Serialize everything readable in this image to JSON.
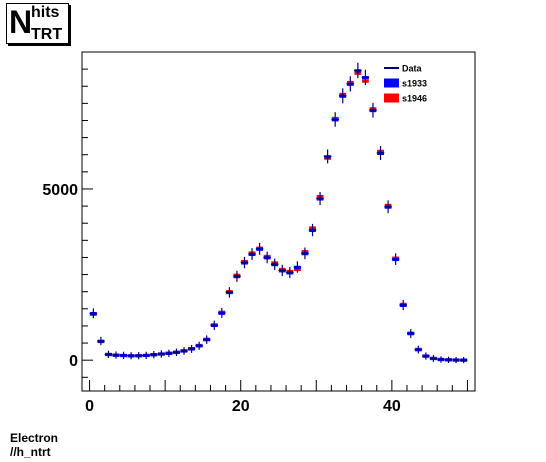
{
  "chart_data": {
    "type": "scatter",
    "title": {
      "main": "N",
      "sup": "hits",
      "sub": "TRT"
    },
    "footer": {
      "line1": "Electron",
      "line2": "//h_ntrt"
    },
    "xlim": [
      -1,
      51
    ],
    "ylim": [
      -900,
      9000
    ],
    "x_ticks": [
      0,
      20,
      40
    ],
    "x_tick_labels": [
      "0",
      "20",
      "40"
    ],
    "y_ticks": [
      0,
      5000
    ],
    "y_tick_labels": [
      "0",
      "5000"
    ],
    "bin_width": 1,
    "legend_position": "top-right",
    "legend": [
      {
        "label": "Data",
        "style": "line",
        "color": "#00007f"
      },
      {
        "label": "s1933",
        "style": "box",
        "color": "#0000ff"
      },
      {
        "label": "s1946",
        "style": "box",
        "color": "#ff0000"
      }
    ],
    "x": [
      0,
      1,
      2,
      3,
      4,
      5,
      6,
      7,
      8,
      9,
      10,
      11,
      12,
      13,
      14,
      15,
      16,
      17,
      18,
      19,
      20,
      21,
      22,
      23,
      24,
      25,
      26,
      27,
      28,
      29,
      30,
      31,
      32,
      33,
      34,
      35,
      36,
      37,
      38,
      39,
      40,
      41,
      42,
      43,
      44,
      45,
      46,
      47,
      48,
      49
    ],
    "series": [
      {
        "name": "Data",
        "color": "#00007f",
        "values": [
          1370,
          560,
          170,
          150,
          140,
          130,
          130,
          140,
          160,
          180,
          200,
          230,
          270,
          330,
          420,
          600,
          1020,
          1380,
          1980,
          2450,
          2850,
          3100,
          3250,
          3000,
          2800,
          2620,
          2560,
          2720,
          3120,
          3800,
          4720,
          5950,
          7030,
          7720,
          8070,
          8460,
          8260,
          7300,
          6050,
          4480,
          2950,
          1610,
          780,
          310,
          120,
          50,
          20,
          10,
          5,
          2
        ]
      },
      {
        "name": "s1933",
        "color": "#0000ff",
        "values": [
          1360,
          550,
          165,
          145,
          135,
          125,
          128,
          138,
          158,
          178,
          198,
          228,
          268,
          328,
          418,
          598,
          1015,
          1370,
          1975,
          2440,
          2840,
          3090,
          3240,
          2990,
          2790,
          2610,
          2550,
          2710,
          3110,
          3790,
          4710,
          5940,
          7020,
          7710,
          8060,
          8450,
          8250,
          7290,
          6040,
          4470,
          2940,
          1600,
          775,
          305,
          118,
          48,
          19,
          9,
          4,
          2
        ]
      },
      {
        "name": "s1946",
        "color": "#ff0000",
        "values": [
          1340,
          545,
          168,
          148,
          138,
          128,
          130,
          140,
          162,
          182,
          205,
          235,
          275,
          338,
          430,
          610,
          1030,
          1400,
          2000,
          2480,
          2880,
          3130,
          3270,
          3030,
          2840,
          2650,
          2590,
          2650,
          3170,
          3860,
          4780,
          5900,
          7060,
          7760,
          8110,
          8380,
          8150,
          7340,
          6100,
          4520,
          2980,
          1630,
          790,
          315,
          122,
          52,
          21,
          10,
          5,
          2
        ]
      }
    ]
  }
}
